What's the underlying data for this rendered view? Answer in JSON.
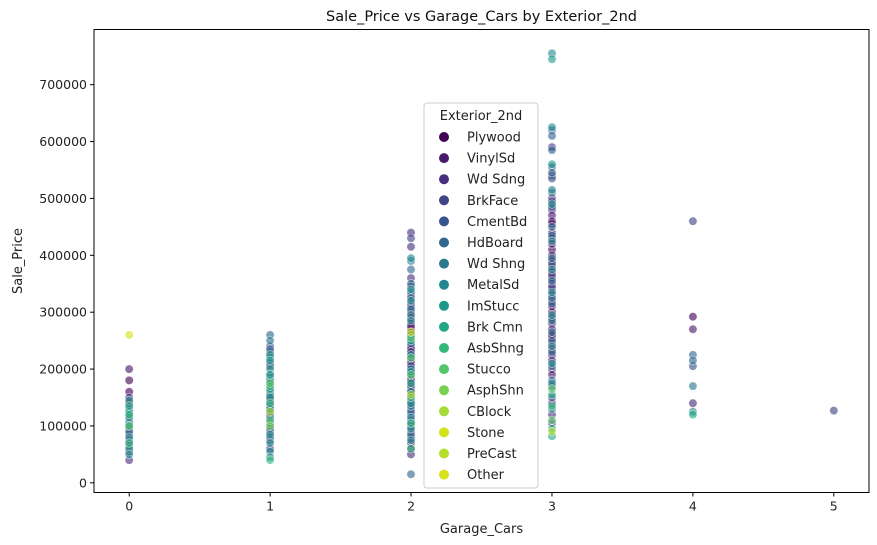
{
  "chart_data": {
    "type": "scatter",
    "title": "Sale_Price vs Garage_Cars by Exterior_2nd",
    "xlabel": "Garage_Cars",
    "ylabel": "Sale_Price",
    "xlim": [
      -0.25,
      5.25
    ],
    "ylim": [
      -17000,
      797000
    ],
    "xticks": [
      "0",
      "1",
      "2",
      "3",
      "4",
      "5"
    ],
    "yticks": [
      "0",
      "100000",
      "200000",
      "300000",
      "400000",
      "500000",
      "600000",
      "700000"
    ],
    "grid": false,
    "legend": {
      "title": "Exterior_2nd",
      "placement": "upper-center",
      "entries": [
        {
          "name": "Plywood",
          "color": "#440154"
        },
        {
          "name": "VinylSd",
          "color": "#481a6c"
        },
        {
          "name": "Wd Sdng",
          "color": "#472f7d"
        },
        {
          "name": "BrkFace",
          "color": "#414487"
        },
        {
          "name": "CmentBd",
          "color": "#39568c"
        },
        {
          "name": "HdBoard",
          "color": "#31688e"
        },
        {
          "name": "Wd Shng",
          "color": "#2a788e"
        },
        {
          "name": "MetalSd",
          "color": "#23888e"
        },
        {
          "name": "ImStucc",
          "color": "#1f988b"
        },
        {
          "name": "Brk Cmn",
          "color": "#22a884"
        },
        {
          "name": "AsbShng",
          "color": "#35b779"
        },
        {
          "name": "Stucco",
          "color": "#54c568"
        },
        {
          "name": "AsphShn",
          "color": "#7ad151"
        },
        {
          "name": "CBlock",
          "color": "#a5db36"
        },
        {
          "name": "Stone",
          "color": "#d2e21b"
        },
        {
          "name": "PreCast",
          "color": "#b5de2b"
        },
        {
          "name": "Other",
          "color": "#d8e219"
        }
      ]
    },
    "series": [
      {
        "name": "Plywood",
        "color": "#440154",
        "points": [
          [
            0,
            180000
          ],
          [
            0,
            160000
          ],
          [
            0,
            140000
          ],
          [
            1,
            175000
          ],
          [
            1,
            140000
          ],
          [
            1,
            125000
          ],
          [
            2,
            270000
          ],
          [
            2,
            240000
          ],
          [
            2,
            215000
          ],
          [
            2,
            200000
          ],
          [
            2,
            155000
          ],
          [
            3,
            455000
          ],
          [
            3,
            410000
          ],
          [
            3,
            370000
          ],
          [
            3,
            300000
          ],
          [
            3,
            255000
          ],
          [
            4,
            292000
          ]
        ]
      },
      {
        "name": "VinylSd",
        "color": "#481a6c",
        "points": [
          [
            0,
            200000
          ],
          [
            0,
            95000
          ],
          [
            1,
            210000
          ],
          [
            1,
            190000
          ],
          [
            1,
            165000
          ],
          [
            2,
            345000
          ],
          [
            2,
            330000
          ],
          [
            2,
            315000
          ],
          [
            2,
            300000
          ],
          [
            2,
            290000
          ],
          [
            2,
            280000
          ],
          [
            2,
            275000
          ],
          [
            2,
            265000
          ],
          [
            2,
            255000
          ],
          [
            2,
            250000
          ],
          [
            2,
            235000
          ],
          [
            2,
            225000
          ],
          [
            2,
            210000
          ],
          [
            2,
            195000
          ],
          [
            2,
            185000
          ],
          [
            2,
            175000
          ],
          [
            2,
            165000
          ],
          [
            2,
            150000
          ],
          [
            2,
            140000
          ],
          [
            3,
            500000
          ],
          [
            3,
            480000
          ],
          [
            3,
            470000
          ],
          [
            3,
            460000
          ],
          [
            3,
            440000
          ],
          [
            3,
            430000
          ],
          [
            3,
            420000
          ],
          [
            3,
            400000
          ],
          [
            3,
            390000
          ],
          [
            3,
            380000
          ],
          [
            3,
            360000
          ],
          [
            3,
            350000
          ],
          [
            3,
            340000
          ],
          [
            3,
            330000
          ],
          [
            3,
            320000
          ],
          [
            3,
            310000
          ],
          [
            3,
            290000
          ],
          [
            3,
            280000
          ],
          [
            3,
            270000
          ],
          [
            3,
            260000
          ],
          [
            3,
            245000
          ],
          [
            3,
            235000
          ],
          [
            3,
            225000
          ],
          [
            3,
            215000
          ],
          [
            3,
            200000
          ],
          [
            3,
            190000
          ],
          [
            4,
            270000
          ]
        ]
      },
      {
        "name": "Wd Sdng",
        "color": "#472f7d",
        "points": [
          [
            0,
            150000
          ],
          [
            0,
            120000
          ],
          [
            0,
            85000
          ],
          [
            0,
            70000
          ],
          [
            0,
            55000
          ],
          [
            0,
            40000
          ],
          [
            1,
            150000
          ],
          [
            1,
            130000
          ],
          [
            1,
            110000
          ],
          [
            1,
            100000
          ],
          [
            1,
            90000
          ],
          [
            1,
            75000
          ],
          [
            1,
            60000
          ],
          [
            2,
            440000
          ],
          [
            2,
            415000
          ],
          [
            2,
            360000
          ],
          [
            2,
            260000
          ],
          [
            2,
            230000
          ],
          [
            2,
            180000
          ],
          [
            2,
            160000
          ],
          [
            2,
            130000
          ],
          [
            2,
            120000
          ],
          [
            2,
            110000
          ],
          [
            2,
            100000
          ],
          [
            2,
            90000
          ],
          [
            2,
            80000
          ],
          [
            2,
            70000
          ],
          [
            2,
            60000
          ],
          [
            2,
            50000
          ],
          [
            3,
            590000
          ],
          [
            3,
            540000
          ],
          [
            3,
            170000
          ],
          [
            3,
            140000
          ],
          [
            3,
            120000
          ],
          [
            3,
            105000
          ],
          [
            4,
            140000
          ]
        ]
      },
      {
        "name": "BrkFace",
        "color": "#414487",
        "points": [
          [
            0,
            75000
          ],
          [
            1,
            240000
          ],
          [
            1,
            120000
          ],
          [
            2,
            430000
          ],
          [
            2,
            205000
          ],
          [
            2,
            170000
          ],
          [
            3,
            495000
          ],
          [
            3,
            365000
          ],
          [
            3,
            345000
          ],
          [
            3,
            150000
          ],
          [
            4,
            460000
          ],
          [
            5,
            127000
          ]
        ]
      },
      {
        "name": "CmentBd",
        "color": "#39568c",
        "points": [
          [
            1,
            230000
          ],
          [
            2,
            310000
          ],
          [
            3,
            555000
          ],
          [
            3,
            535000
          ],
          [
            3,
            485000
          ],
          [
            3,
            385000
          ],
          [
            4,
            205000
          ]
        ]
      },
      {
        "name": "HdBoard",
        "color": "#31688e",
        "points": [
          [
            0,
            130000
          ],
          [
            0,
            110000
          ],
          [
            0,
            90000
          ],
          [
            0,
            65000
          ],
          [
            1,
            260000
          ],
          [
            1,
            235000
          ],
          [
            1,
            205000
          ],
          [
            1,
            185000
          ],
          [
            1,
            170000
          ],
          [
            1,
            160000
          ],
          [
            1,
            145000
          ],
          [
            1,
            135000
          ],
          [
            1,
            115000
          ],
          [
            1,
            95000
          ],
          [
            1,
            80000
          ],
          [
            2,
            375000
          ],
          [
            2,
            350000
          ],
          [
            2,
            335000
          ],
          [
            2,
            325000
          ],
          [
            2,
            305000
          ],
          [
            2,
            245000
          ],
          [
            2,
            220000
          ],
          [
            2,
            190000
          ],
          [
            2,
            145000
          ],
          [
            2,
            125000
          ],
          [
            2,
            105000
          ],
          [
            2,
            85000
          ],
          [
            2,
            15000
          ],
          [
            3,
            620000
          ],
          [
            3,
            610000
          ],
          [
            3,
            585000
          ],
          [
            3,
            545000
          ],
          [
            3,
            450000
          ],
          [
            3,
            435000
          ],
          [
            3,
            395000
          ],
          [
            3,
            355000
          ],
          [
            3,
            315000
          ],
          [
            3,
            265000
          ],
          [
            3,
            250000
          ],
          [
            3,
            230000
          ],
          [
            3,
            205000
          ],
          [
            3,
            180000
          ],
          [
            4,
            225000
          ],
          [
            4,
            215000
          ]
        ]
      },
      {
        "name": "Wd Shng",
        "color": "#2a788e",
        "points": [
          [
            0,
            105000
          ],
          [
            1,
            250000
          ],
          [
            1,
            220000
          ],
          [
            1,
            155000
          ],
          [
            2,
            390000
          ],
          [
            2,
            295000
          ],
          [
            2,
            200000
          ],
          [
            2,
            135000
          ],
          [
            3,
            510000
          ],
          [
            3,
            325000
          ],
          [
            3,
            285000
          ],
          [
            4,
            170000
          ]
        ]
      },
      {
        "name": "MetalSd",
        "color": "#23888e",
        "points": [
          [
            0,
            145000
          ],
          [
            0,
            125000
          ],
          [
            0,
            115000
          ],
          [
            0,
            100000
          ],
          [
            0,
            80000
          ],
          [
            0,
            60000
          ],
          [
            0,
            50000
          ],
          [
            1,
            225000
          ],
          [
            1,
            200000
          ],
          [
            1,
            180000
          ],
          [
            1,
            150000
          ],
          [
            1,
            130000
          ],
          [
            1,
            105000
          ],
          [
            1,
            85000
          ],
          [
            1,
            70000
          ],
          [
            1,
            55000
          ],
          [
            1,
            45000
          ],
          [
            2,
            395000
          ],
          [
            2,
            320000
          ],
          [
            2,
            285000
          ],
          [
            2,
            260000
          ],
          [
            2,
            225000
          ],
          [
            2,
            195000
          ],
          [
            2,
            160000
          ],
          [
            2,
            140000
          ],
          [
            2,
            115000
          ],
          [
            2,
            95000
          ],
          [
            2,
            75000
          ],
          [
            3,
            755000
          ],
          [
            3,
            625000
          ],
          [
            3,
            515000
          ],
          [
            3,
            490000
          ],
          [
            3,
            425000
          ],
          [
            3,
            375000
          ],
          [
            3,
            335000
          ],
          [
            3,
            295000
          ],
          [
            3,
            240000
          ],
          [
            3,
            210000
          ],
          [
            3,
            175000
          ],
          [
            3,
            130000
          ],
          [
            4,
            125000
          ]
        ]
      },
      {
        "name": "ImStucc",
        "color": "#1f988b",
        "points": [
          [
            1,
            215000
          ],
          [
            2,
            340000
          ],
          [
            3,
            560000
          ],
          [
            3,
            745000
          ]
        ]
      },
      {
        "name": "Brk Cmn",
        "color": "#22a884",
        "points": [
          [
            0,
            135000
          ],
          [
            1,
            190000
          ],
          [
            1,
            165000
          ],
          [
            2,
            250000
          ],
          [
            2,
            175000
          ],
          [
            3,
            155000
          ],
          [
            3,
            95000
          ],
          [
            3,
            82000
          ],
          [
            4,
            120000
          ]
        ]
      },
      {
        "name": "AsbShng",
        "color": "#35b779",
        "points": [
          [
            0,
            120000
          ],
          [
            0,
            70000
          ],
          [
            1,
            170000
          ],
          [
            1,
            140000
          ],
          [
            1,
            40000
          ],
          [
            2,
            150000
          ],
          [
            2,
            105000
          ],
          [
            2,
            60000
          ],
          [
            3,
            135000
          ]
        ]
      },
      {
        "name": "Stucco",
        "color": "#54c568",
        "points": [
          [
            0,
            100000
          ],
          [
            1,
            175000
          ],
          [
            1,
            110000
          ],
          [
            2,
            255000
          ],
          [
            2,
            220000
          ],
          [
            2,
            190000
          ],
          [
            3,
            165000
          ],
          [
            3,
            110000
          ]
        ]
      },
      {
        "name": "AsphShn",
        "color": "#7ad151",
        "points": [
          [
            1,
            100000
          ]
        ]
      },
      {
        "name": "CBlock",
        "color": "#a5db36",
        "points": [
          [
            1,
            125000
          ]
        ]
      },
      {
        "name": "Stone",
        "color": "#d2e21b",
        "points": [
          [
            2,
            265000
          ]
        ]
      },
      {
        "name": "PreCast",
        "color": "#b5de2b",
        "points": [
          [
            2,
            155000
          ],
          [
            3,
            90000
          ]
        ]
      },
      {
        "name": "Other",
        "color": "#d8e219",
        "points": [
          [
            0,
            260000
          ]
        ]
      }
    ]
  }
}
